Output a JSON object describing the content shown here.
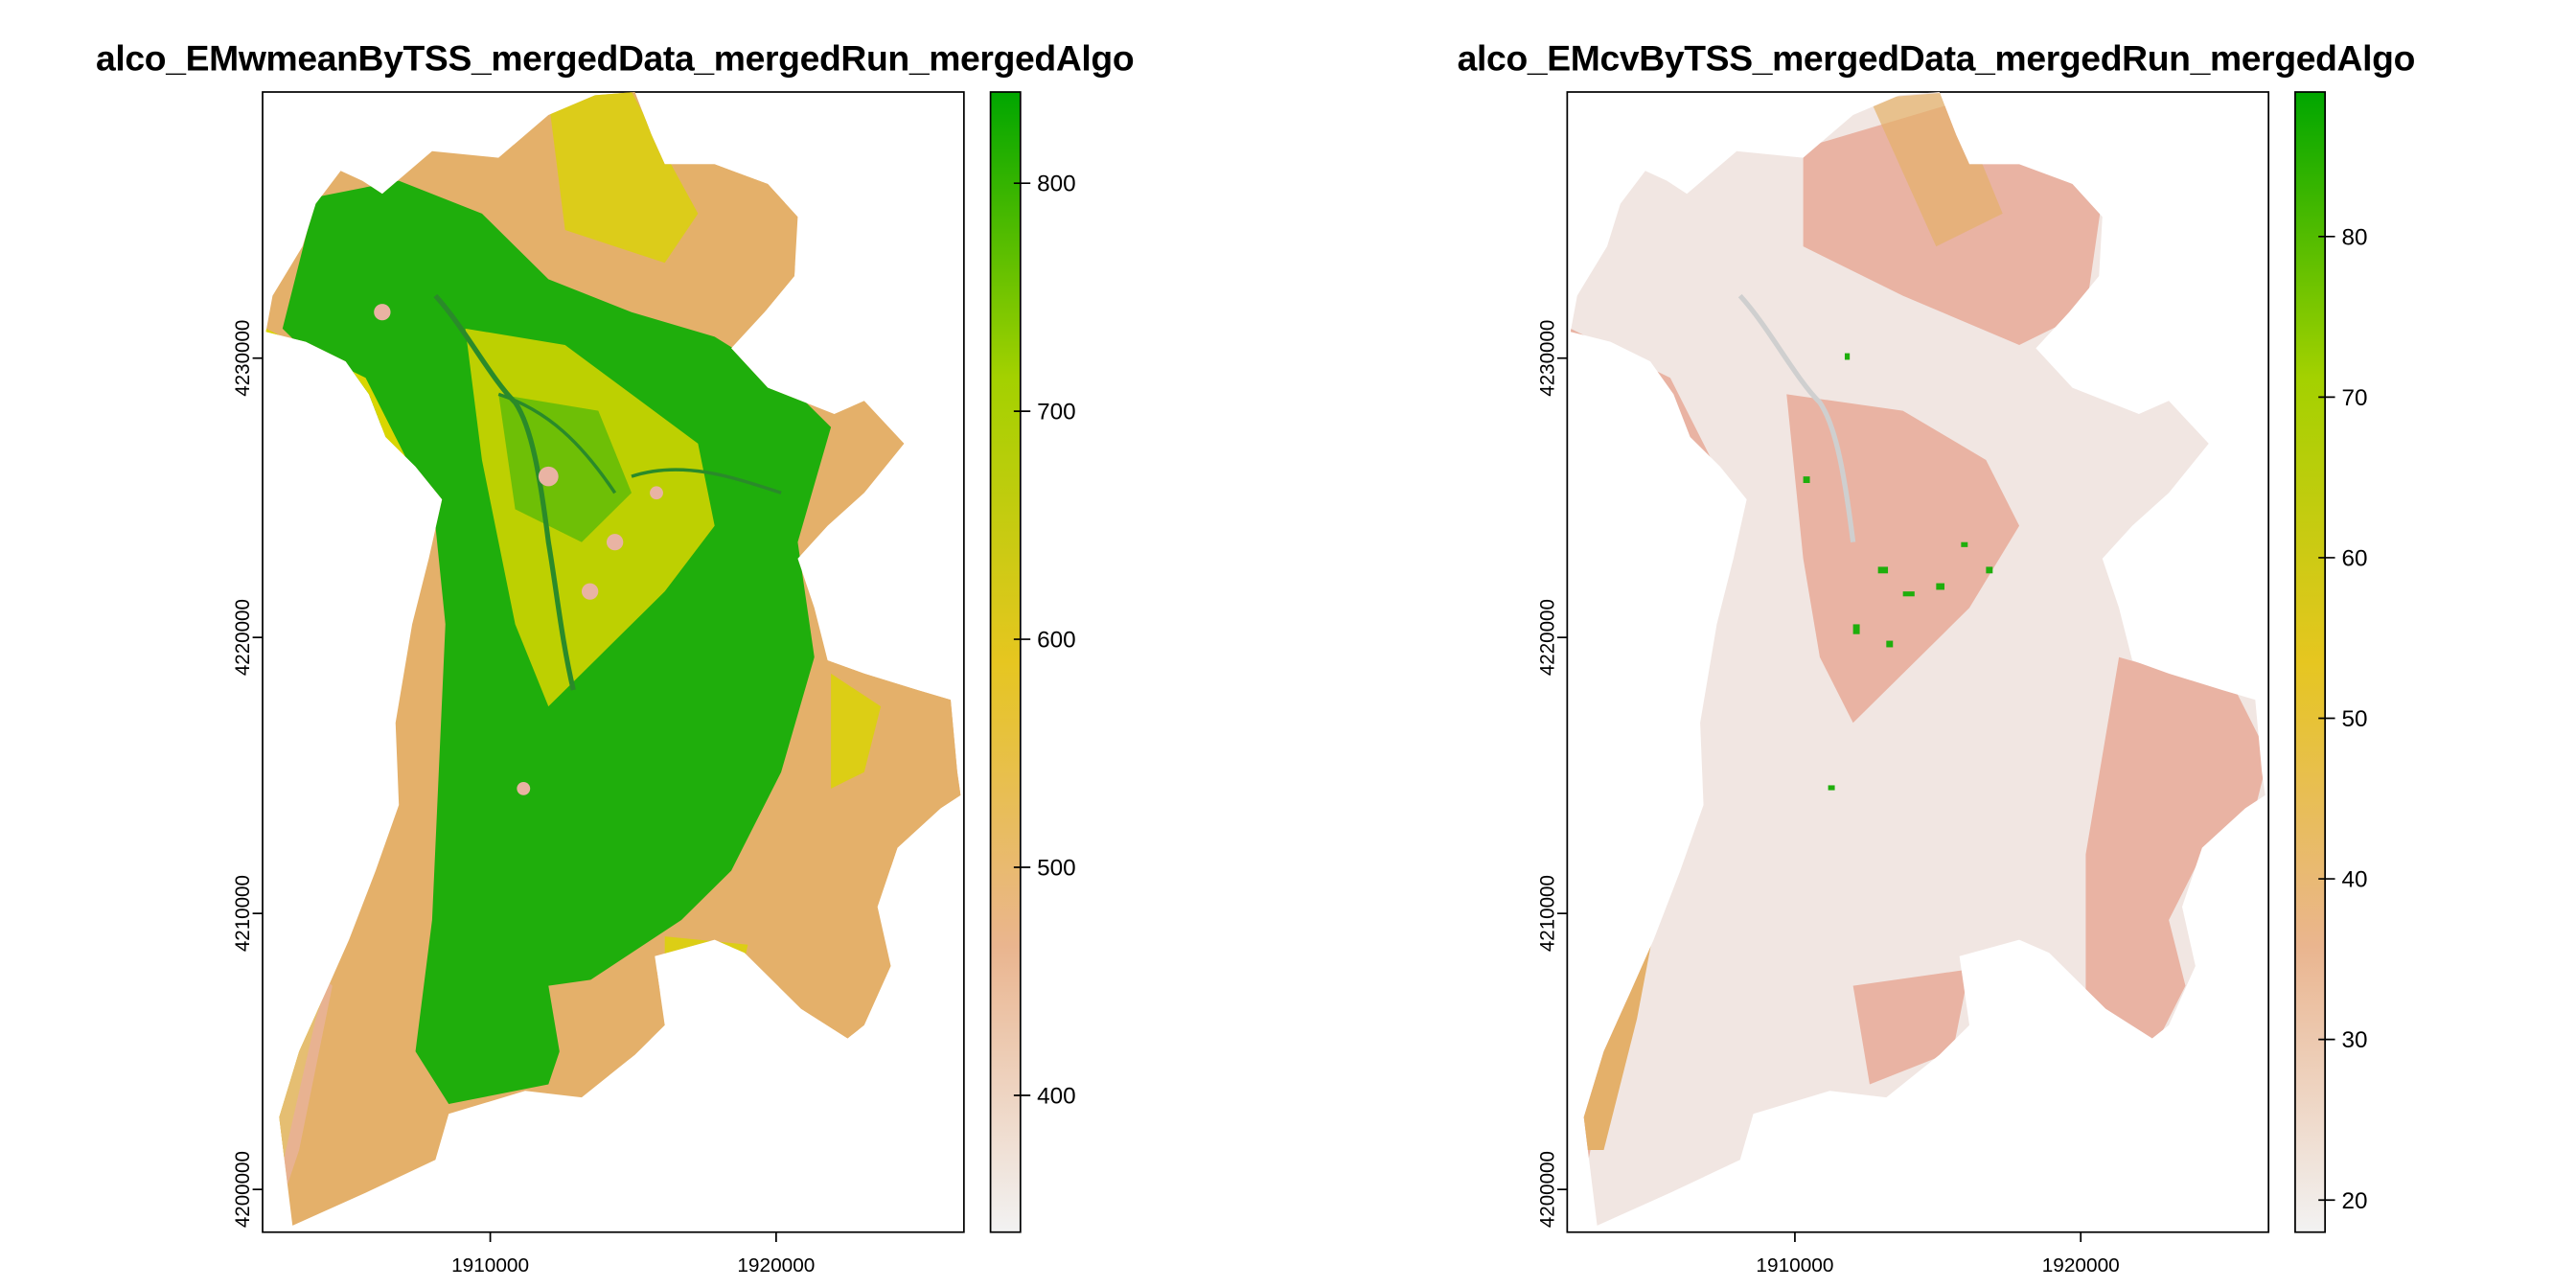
{
  "panels": [
    {
      "title": "alco_EMwmeanByTSS_mergedData_mergedRun_mergedAlgo",
      "legend": {
        "min": 340,
        "max": 840,
        "ticks": [
          400,
          500,
          600,
          700,
          800
        ],
        "tick_labels": [
          "400",
          "500",
          "600",
          "700",
          "800"
        ],
        "colormap": [
          "#f2f2f2",
          "#eab58f",
          "#e6c620",
          "#a3d100",
          "#00a600"
        ]
      },
      "x_ticks": [
        "1910000",
        "1920000"
      ],
      "y_ticks": [
        "4200000",
        "4210000",
        "4220000",
        "4230000"
      ]
    },
    {
      "title": "alco_EMcvByTSS_mergedData_mergedRun_mergedAlgo",
      "legend": {
        "min": 18,
        "max": 89,
        "ticks": [
          20,
          30,
          40,
          50,
          60,
          70,
          80
        ],
        "tick_labels": [
          "20",
          "30",
          "40",
          "50",
          "60",
          "70",
          "80"
        ],
        "colormap": [
          "#f2f2f2",
          "#eab58f",
          "#e6c620",
          "#a3d100",
          "#00a600"
        ]
      },
      "x_ticks": [
        "1910000",
        "1920000"
      ],
      "y_ticks": [
        "4200000",
        "4210000",
        "4220000",
        "4230000"
      ]
    }
  ],
  "colors": {
    "terrain_green": "#1fae0c",
    "terrain_yellow": "#d9d600",
    "terrain_orange": "#e4b06a",
    "terrain_pink": "#e9b3a3",
    "terrain_light": "#f1e6e2"
  }
}
